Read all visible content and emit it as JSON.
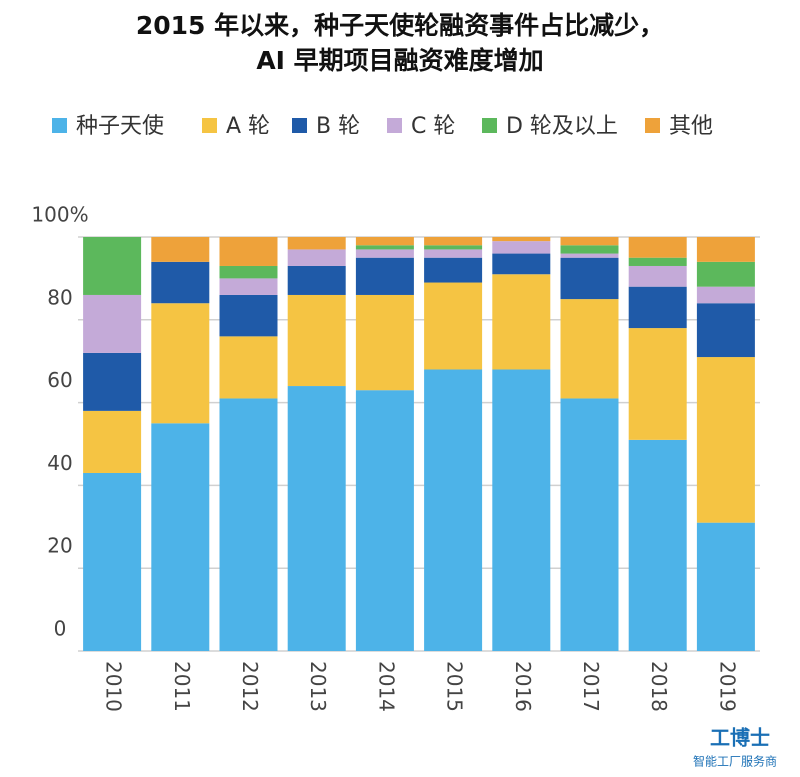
{
  "chart_data": {
    "type": "stacked-bar",
    "title": "2015 年以来，种子天使轮融资事件占比减少，",
    "subtitle": "AI 早期项目融资难度增加",
    "annotations": [
      "工博士",
      "智能工厂服务商"
    ],
    "categories": [
      "2010",
      "2011",
      "2012",
      "2013",
      "2014",
      "2015",
      "2016",
      "2017",
      "2018",
      "2019"
    ],
    "series": [
      {
        "name": "种子天使",
        "color": "#4db3e8",
        "values": [
          43,
          55,
          61,
          64,
          63,
          68,
          68,
          61,
          51,
          31
        ]
      },
      {
        "name": "A 轮",
        "color": "#f5c443",
        "values": [
          15,
          29,
          15,
          22,
          23,
          21,
          23,
          24,
          27,
          40
        ]
      },
      {
        "name": "B 轮",
        "color": "#1f5aa8",
        "values": [
          14,
          10,
          10,
          7,
          9,
          6,
          5,
          10,
          10,
          13
        ]
      },
      {
        "name": "C 轮",
        "color": "#c4aad8",
        "values": [
          14,
          0,
          4,
          4,
          2,
          2,
          3,
          1,
          5,
          4
        ]
      },
      {
        "name": "D 轮及以上",
        "color": "#5cb85c",
        "values": [
          14,
          0,
          3,
          0,
          1,
          1,
          0,
          2,
          2,
          6
        ]
      },
      {
        "name": "其他",
        "color": "#eea23a",
        "values": [
          0,
          6,
          7,
          3,
          2,
          2,
          1,
          2,
          5,
          6
        ]
      }
    ],
    "ylim": [
      0,
      100
    ],
    "yticks": [
      0,
      20,
      40,
      60,
      80,
      {
        "value": 100,
        "label": "100%"
      }
    ],
    "grid": true
  }
}
